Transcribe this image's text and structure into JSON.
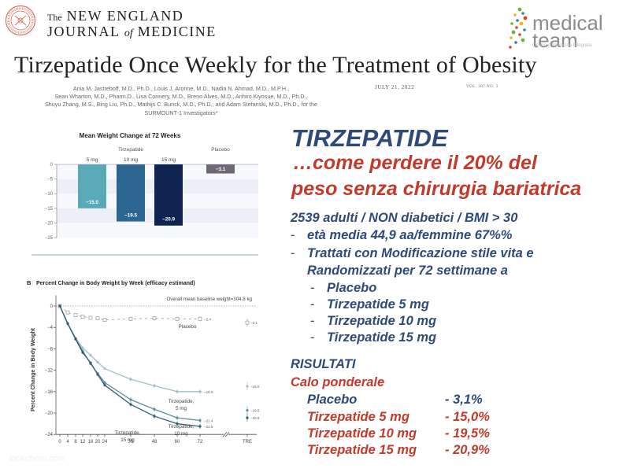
{
  "header": {
    "journal_the": "The",
    "journal_line1": "NEW ENGLAND",
    "journal_line2_a": "JOURNAL",
    "journal_line2_of": "of",
    "journal_line2_b": "MEDICINE",
    "article_title": "Tirzepatide Once Weekly for the Treatment of Obesity",
    "authors": [
      "Ania M. Jastreboff, M.D., Ph.D., Louis J. Aronne, M.D., Nadia N. Ahmad, M.D., M.P.H.,",
      "Sean Wharton, M.D., Pharm.D., Lisa Connery, M.D., Breno Alves, M.D., Arihiro Kiyosue, M.D., Ph.D.,",
      "Shuyu Zhang, M.S., Bing Liu, Ph.D., Mathijs C. Bunck, M.D., Ph.D., and Adam Stefanski, M.D., Ph.D., for the",
      "SURMOUNT-1 Investigators*"
    ],
    "date": "JULY 21, 2022",
    "volume": "VOL. 387   NO. 3"
  },
  "logo": {
    "word1": "medical",
    "word2": "team",
    "subtitle": "Centro di Medicina Integrata",
    "dot_colors": [
      "#6cb33f",
      "#2a7fc1",
      "#f2b61b",
      "#e1412c",
      "#2a7fc1",
      "#6cb33f",
      "#f2b61b",
      "#e1412c",
      "#2a7fc1",
      "#6cb33f",
      "#e1412c",
      "#f2b61b",
      "#6cb33f",
      "#2a7fc1",
      "#e1412c"
    ]
  },
  "right_panel": {
    "heading": "TIRZEPATIDE",
    "subheading_line1": "…come perdere il 20% del",
    "subheading_line2": "peso senza chirurgia bariatrica",
    "population": "2539  adulti / NON diabetici / BMI > 30",
    "bullets": [
      "età media 44,9 aa/femmine 67%%",
      "Trattati con Modificazione stile vita e",
      "Randomizzati per 72 settimane a"
    ],
    "arms": [
      "Placebo",
      "Tirzepatide 5 mg",
      "Tirzepatide 10 mg",
      "Tirzepatide 15 mg"
    ],
    "results_heading": "RISULTATI",
    "results_subheading": "Calo ponderale",
    "results": [
      {
        "label": "Placebo",
        "value": "- 3,1%"
      },
      {
        "label": "Tirzepatide 5 mg",
        "value": "- 15,0%"
      },
      {
        "label": "Tirzepatide 10 mg",
        "value": "- 19,5%"
      },
      {
        "label": "Tirzepatide 15 mg",
        "value": "-  20,9%"
      }
    ],
    "bullet_dash": "-",
    "colors": {
      "blue": "#2e4a7a",
      "red": "#c23a2b"
    }
  },
  "watermark": "lookchem.com",
  "chart_data": [
    {
      "type": "bar",
      "title": "Mean Weight Change at 72 Weeks",
      "group_labels": [
        "Tirzepatide",
        "Placebo"
      ],
      "categories": [
        "5 mg",
        "10 mg",
        "15 mg",
        "Placebo"
      ],
      "values": [
        -15.0,
        -19.5,
        -20.9,
        -3.1
      ],
      "value_labels": [
        "−15.0",
        "−19.5",
        "−20.9",
        "−3.1"
      ],
      "colors": [
        "#5aa9b8",
        "#2c6592",
        "#0e2350",
        "#6e6878"
      ],
      "xlabel": "",
      "ylabel": "Percentage Change",
      "ylim": [
        -25,
        0
      ],
      "yticks": [
        0,
        -5,
        -10,
        -15,
        -20,
        -25
      ],
      "ytick_labels": [
        "0",
        "−5",
        "−10",
        "−15",
        "−20",
        "−25"
      ],
      "grid": "alternating bands"
    },
    {
      "type": "line",
      "panel_label": "B",
      "title": "Percent Change in Body Weight by Week (efficacy estimand)",
      "annotation": "Overall mean baseline weight=104.8 kg",
      "xlabel": "",
      "ylabel": "Percent Change in Body Weight",
      "ylim": [
        -24,
        0
      ],
      "yticks": [
        0,
        -4,
        -8,
        -12,
        -16,
        -20,
        -24
      ],
      "ytick_labels": [
        "0",
        "−4",
        "−8",
        "−12",
        "−16",
        "−20",
        "−24"
      ],
      "x": [
        0,
        4,
        8,
        12,
        16,
        20,
        24,
        36,
        48,
        60,
        72
      ],
      "xtick_labels": [
        "0",
        "4",
        "8",
        "12",
        "16",
        "20",
        "24",
        "36",
        "48",
        "60",
        "72",
        "TRE"
      ],
      "series": [
        {
          "name": "Placebo",
          "label": "Placebo",
          "color": "#9a9a9a",
          "style": "dashed-square",
          "values": [
            0,
            -1.2,
            -1.7,
            -2.0,
            -2.2,
            -2.3,
            -2.6,
            -2.4,
            -2.3,
            -2.4,
            -2.4
          ],
          "end_label": "−2.4",
          "tre_value": -3.1,
          "tre_label": "−3.1"
        },
        {
          "name": "Tirzepatide 5 mg",
          "label": "Tirzepatide, 5 mg",
          "color": "#9fbfc6",
          "values": [
            0,
            -3.2,
            -6.0,
            -7.8,
            -9.2,
            -10.5,
            -11.7,
            -13.7,
            -14.9,
            -16.0,
            -16.0
          ],
          "end_label": "−16.0",
          "tre_value": -15.0,
          "tre_label": "−15.0"
        },
        {
          "name": "Tirzepatide 10 mg",
          "label": "Tirzepatide, 10 mg",
          "color": "#5d8ea0",
          "values": [
            0,
            -3.3,
            -6.1,
            -8.4,
            -10.8,
            -12.6,
            -14.3,
            -17.5,
            -19.3,
            -20.9,
            -21.4
          ],
          "end_label": "−21.4",
          "tre_value": -19.5,
          "tre_label": "−19.5"
        },
        {
          "name": "Tirzepatide 15 mg",
          "label": "Tirzepatide, 15 mg",
          "color": "#2c5a78",
          "values": [
            0,
            -3.3,
            -6.2,
            -8.7,
            -10.6,
            -12.8,
            -14.8,
            -18.4,
            -20.6,
            -22.0,
            -22.5
          ],
          "end_label": "−22.5",
          "tre_value": -20.9,
          "tre_label": "−20.9"
        }
      ]
    }
  ]
}
